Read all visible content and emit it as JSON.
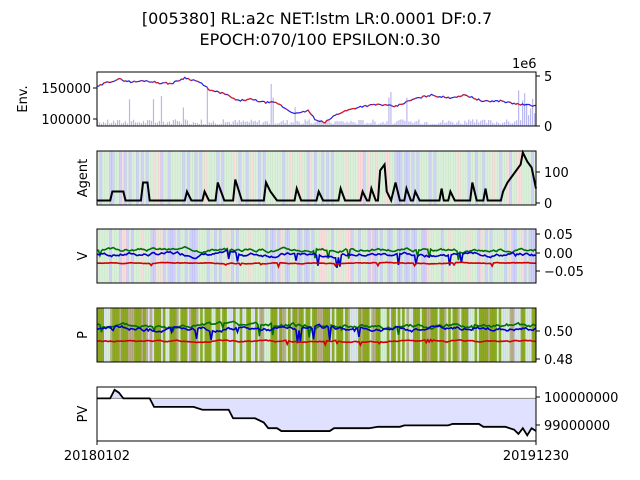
{
  "title": {
    "line1": "[005380] RL:a2c NET:lstm LR:0.0001 DF:0.7",
    "line2": "EPOCH:070/100 EPSILON:0.30"
  },
  "x_axis": {
    "tick_labels": [
      "20180102",
      "20191230"
    ]
  },
  "colors": {
    "buy": "#e02020",
    "sell": "#2020e0",
    "hold_bg": "#5cb85c",
    "volume": "#9a9ae8",
    "value_buy": "#d00000",
    "value_sell": "#0000c8",
    "value_hold": "#007000",
    "policy_bg": "#7a9a00",
    "pv_fill": "#e0e0ff",
    "agent_line": "#000000"
  },
  "chart_data": [
    {
      "type": "line",
      "name_key": "env",
      "ylabel": "Env.",
      "yticks_left": [
        "150000",
        "100000"
      ],
      "ylim": [
        93000,
        168000
      ],
      "right_axis": {
        "offset_text": "1e6",
        "ticks": [
          "5",
          "0"
        ],
        "ylim": [
          0,
          5.2
        ]
      },
      "price_points": [
        [
          0,
          147000
        ],
        [
          0.02,
          153000
        ],
        [
          0.05,
          158000
        ],
        [
          0.08,
          154000
        ],
        [
          0.11,
          156000
        ],
        [
          0.14,
          153000
        ],
        [
          0.17,
          152000
        ],
        [
          0.2,
          160000
        ],
        [
          0.23,
          155000
        ],
        [
          0.26,
          142000
        ],
        [
          0.29,
          138000
        ],
        [
          0.32,
          128000
        ],
        [
          0.35,
          130000
        ],
        [
          0.38,
          126000
        ],
        [
          0.41,
          125000
        ],
        [
          0.44,
          113000
        ],
        [
          0.46,
          110000
        ],
        [
          0.48,
          115000
        ],
        [
          0.5,
          100000
        ],
        [
          0.52,
          98000
        ],
        [
          0.54,
          107000
        ],
        [
          0.56,
          113000
        ],
        [
          0.6,
          120000
        ],
        [
          0.64,
          123000
        ],
        [
          0.68,
          120000
        ],
        [
          0.72,
          130000
        ],
        [
          0.76,
          136000
        ],
        [
          0.8,
          132000
        ],
        [
          0.84,
          136000
        ],
        [
          0.88,
          127000
        ],
        [
          0.92,
          128000
        ],
        [
          0.95,
          124000
        ],
        [
          0.98,
          122000
        ],
        [
          1,
          121000
        ]
      ]
    },
    {
      "type": "line",
      "name_key": "agent",
      "ylabel": "Agent",
      "yticks_right": [
        "100",
        "0"
      ],
      "ylim": [
        -15,
        165
      ],
      "points": [
        [
          0,
          0
        ],
        [
          0.03,
          0
        ],
        [
          0.035,
          30
        ],
        [
          0.06,
          30
        ],
        [
          0.065,
          0
        ],
        [
          0.1,
          0
        ],
        [
          0.105,
          60
        ],
        [
          0.115,
          60
        ],
        [
          0.12,
          0
        ],
        [
          0.2,
          0
        ],
        [
          0.205,
          30
        ],
        [
          0.215,
          0
        ],
        [
          0.24,
          0
        ],
        [
          0.245,
          30
        ],
        [
          0.255,
          0
        ],
        [
          0.27,
          0
        ],
        [
          0.275,
          60
        ],
        [
          0.29,
          0
        ],
        [
          0.31,
          0
        ],
        [
          0.315,
          70
        ],
        [
          0.33,
          0
        ],
        [
          0.38,
          0
        ],
        [
          0.385,
          60
        ],
        [
          0.395,
          30
        ],
        [
          0.41,
          0
        ],
        [
          0.45,
          0
        ],
        [
          0.455,
          40
        ],
        [
          0.465,
          0
        ],
        [
          0.5,
          0
        ],
        [
          0.505,
          30
        ],
        [
          0.515,
          0
        ],
        [
          0.55,
          0
        ],
        [
          0.555,
          40
        ],
        [
          0.565,
          0
        ],
        [
          0.6,
          0
        ],
        [
          0.605,
          30
        ],
        [
          0.615,
          0
        ],
        [
          0.62,
          0
        ],
        [
          0.625,
          40
        ],
        [
          0.635,
          0
        ],
        [
          0.64,
          0
        ],
        [
          0.645,
          100
        ],
        [
          0.655,
          120
        ],
        [
          0.66,
          30
        ],
        [
          0.67,
          0
        ],
        [
          0.68,
          60
        ],
        [
          0.69,
          0
        ],
        [
          0.7,
          0
        ],
        [
          0.705,
          40
        ],
        [
          0.715,
          0
        ],
        [
          0.72,
          0
        ],
        [
          0.725,
          30
        ],
        [
          0.735,
          0
        ],
        [
          0.78,
          0
        ],
        [
          0.785,
          40
        ],
        [
          0.79,
          0
        ],
        [
          0.8,
          0
        ],
        [
          0.805,
          30
        ],
        [
          0.815,
          0
        ],
        [
          0.85,
          0
        ],
        [
          0.855,
          60
        ],
        [
          0.865,
          0
        ],
        [
          0.88,
          0
        ],
        [
          0.885,
          40
        ],
        [
          0.89,
          0
        ],
        [
          0.92,
          0
        ],
        [
          0.925,
          30
        ],
        [
          0.935,
          60
        ],
        [
          0.95,
          90
        ],
        [
          0.965,
          120
        ],
        [
          0.97,
          160
        ],
        [
          0.98,
          130
        ],
        [
          0.99,
          110
        ],
        [
          1,
          40
        ]
      ]
    },
    {
      "type": "line",
      "name_key": "value",
      "ylabel": "V",
      "yticks_right": [
        "0.05",
        "0.00",
        "−0.05"
      ],
      "ylim": [
        -0.085,
        0.065
      ],
      "series": [
        {
          "key": "value_hold",
          "base": 0.008,
          "amp": 0.012,
          "seed": 3
        },
        {
          "key": "value_sell",
          "base": -0.005,
          "amp": 0.014,
          "seed": 7
        },
        {
          "key": "value_buy",
          "base": -0.03,
          "amp": 0.004,
          "seed": 11
        }
      ]
    },
    {
      "type": "line",
      "name_key": "policy",
      "ylabel": "P",
      "yticks_right": [
        "0.50",
        "0.48"
      ],
      "ylim": [
        0.476,
        0.515
      ],
      "series": [
        {
          "key": "value_hold",
          "base": 0.502,
          "amp": 0.004,
          "seed": 5
        },
        {
          "key": "value_sell",
          "base": 0.5,
          "amp": 0.004,
          "seed": 9
        },
        {
          "key": "value_buy",
          "base": 0.491,
          "amp": 0.0015,
          "seed": 13
        }
      ]
    },
    {
      "type": "area",
      "name_key": "pv",
      "ylabel": "PV",
      "yticks_right": [
        "100000000",
        "99000000"
      ],
      "ylim": [
        98500000,
        100400000
      ],
      "baseline": 100000000,
      "points": [
        [
          0,
          100000000
        ],
        [
          0.03,
          100000000
        ],
        [
          0.04,
          100300000
        ],
        [
          0.05,
          100200000
        ],
        [
          0.06,
          100000000
        ],
        [
          0.12,
          100000000
        ],
        [
          0.13,
          99700000
        ],
        [
          0.22,
          99700000
        ],
        [
          0.24,
          99600000
        ],
        [
          0.3,
          99600000
        ],
        [
          0.31,
          99300000
        ],
        [
          0.36,
          99300000
        ],
        [
          0.38,
          99150000
        ],
        [
          0.39,
          98950000
        ],
        [
          0.41,
          98950000
        ],
        [
          0.42,
          98850000
        ],
        [
          0.53,
          98850000
        ],
        [
          0.54,
          98950000
        ],
        [
          0.62,
          98950000
        ],
        [
          0.64,
          99000000
        ],
        [
          0.69,
          99000000
        ],
        [
          0.7,
          99050000
        ],
        [
          0.8,
          99050000
        ],
        [
          0.81,
          99100000
        ],
        [
          0.87,
          99100000
        ],
        [
          0.88,
          99000000
        ],
        [
          0.93,
          99000000
        ],
        [
          0.95,
          98900000
        ],
        [
          0.96,
          98750000
        ],
        [
          0.97,
          98950000
        ],
        [
          0.98,
          98700000
        ],
        [
          0.99,
          98950000
        ],
        [
          1,
          98850000
        ]
      ]
    }
  ]
}
